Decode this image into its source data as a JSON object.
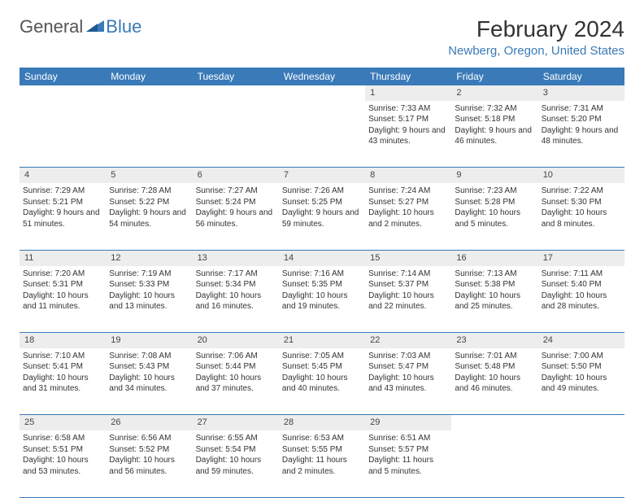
{
  "logo": {
    "text1": "General",
    "text2": "Blue"
  },
  "title": "February 2024",
  "location": "Newberg, Oregon, United States",
  "colors": {
    "header_bg": "#3a7ab8",
    "header_fg": "#ffffff",
    "daynum_bg": "#ededed",
    "border": "#3a7ab8",
    "accent": "#3a7ab8",
    "text": "#333333",
    "page_bg": "#ffffff"
  },
  "typography": {
    "title_fontsize": 28,
    "location_fontsize": 15,
    "dayheader_fontsize": 12,
    "cell_fontsize": 10
  },
  "day_headers": [
    "Sunday",
    "Monday",
    "Tuesday",
    "Wednesday",
    "Thursday",
    "Friday",
    "Saturday"
  ],
  "weeks": [
    [
      null,
      null,
      null,
      null,
      {
        "n": "1",
        "sunrise": "7:33 AM",
        "sunset": "5:17 PM",
        "day_h": 9,
        "day_m": 43
      },
      {
        "n": "2",
        "sunrise": "7:32 AM",
        "sunset": "5:18 PM",
        "day_h": 9,
        "day_m": 46
      },
      {
        "n": "3",
        "sunrise": "7:31 AM",
        "sunset": "5:20 PM",
        "day_h": 9,
        "day_m": 48
      }
    ],
    [
      {
        "n": "4",
        "sunrise": "7:29 AM",
        "sunset": "5:21 PM",
        "day_h": 9,
        "day_m": 51
      },
      {
        "n": "5",
        "sunrise": "7:28 AM",
        "sunset": "5:22 PM",
        "day_h": 9,
        "day_m": 54
      },
      {
        "n": "6",
        "sunrise": "7:27 AM",
        "sunset": "5:24 PM",
        "day_h": 9,
        "day_m": 56
      },
      {
        "n": "7",
        "sunrise": "7:26 AM",
        "sunset": "5:25 PM",
        "day_h": 9,
        "day_m": 59
      },
      {
        "n": "8",
        "sunrise": "7:24 AM",
        "sunset": "5:27 PM",
        "day_h": 10,
        "day_m": 2
      },
      {
        "n": "9",
        "sunrise": "7:23 AM",
        "sunset": "5:28 PM",
        "day_h": 10,
        "day_m": 5
      },
      {
        "n": "10",
        "sunrise": "7:22 AM",
        "sunset": "5:30 PM",
        "day_h": 10,
        "day_m": 8
      }
    ],
    [
      {
        "n": "11",
        "sunrise": "7:20 AM",
        "sunset": "5:31 PM",
        "day_h": 10,
        "day_m": 11
      },
      {
        "n": "12",
        "sunrise": "7:19 AM",
        "sunset": "5:33 PM",
        "day_h": 10,
        "day_m": 13
      },
      {
        "n": "13",
        "sunrise": "7:17 AM",
        "sunset": "5:34 PM",
        "day_h": 10,
        "day_m": 16
      },
      {
        "n": "14",
        "sunrise": "7:16 AM",
        "sunset": "5:35 PM",
        "day_h": 10,
        "day_m": 19
      },
      {
        "n": "15",
        "sunrise": "7:14 AM",
        "sunset": "5:37 PM",
        "day_h": 10,
        "day_m": 22
      },
      {
        "n": "16",
        "sunrise": "7:13 AM",
        "sunset": "5:38 PM",
        "day_h": 10,
        "day_m": 25
      },
      {
        "n": "17",
        "sunrise": "7:11 AM",
        "sunset": "5:40 PM",
        "day_h": 10,
        "day_m": 28
      }
    ],
    [
      {
        "n": "18",
        "sunrise": "7:10 AM",
        "sunset": "5:41 PM",
        "day_h": 10,
        "day_m": 31
      },
      {
        "n": "19",
        "sunrise": "7:08 AM",
        "sunset": "5:43 PM",
        "day_h": 10,
        "day_m": 34
      },
      {
        "n": "20",
        "sunrise": "7:06 AM",
        "sunset": "5:44 PM",
        "day_h": 10,
        "day_m": 37
      },
      {
        "n": "21",
        "sunrise": "7:05 AM",
        "sunset": "5:45 PM",
        "day_h": 10,
        "day_m": 40
      },
      {
        "n": "22",
        "sunrise": "7:03 AM",
        "sunset": "5:47 PM",
        "day_h": 10,
        "day_m": 43
      },
      {
        "n": "23",
        "sunrise": "7:01 AM",
        "sunset": "5:48 PM",
        "day_h": 10,
        "day_m": 46
      },
      {
        "n": "24",
        "sunrise": "7:00 AM",
        "sunset": "5:50 PM",
        "day_h": 10,
        "day_m": 49
      }
    ],
    [
      {
        "n": "25",
        "sunrise": "6:58 AM",
        "sunset": "5:51 PM",
        "day_h": 10,
        "day_m": 53
      },
      {
        "n": "26",
        "sunrise": "6:56 AM",
        "sunset": "5:52 PM",
        "day_h": 10,
        "day_m": 56
      },
      {
        "n": "27",
        "sunrise": "6:55 AM",
        "sunset": "5:54 PM",
        "day_h": 10,
        "day_m": 59
      },
      {
        "n": "28",
        "sunrise": "6:53 AM",
        "sunset": "5:55 PM",
        "day_h": 11,
        "day_m": 2
      },
      {
        "n": "29",
        "sunrise": "6:51 AM",
        "sunset": "5:57 PM",
        "day_h": 11,
        "day_m": 5
      },
      null,
      null
    ]
  ],
  "labels": {
    "sunrise": "Sunrise:",
    "sunset": "Sunset:",
    "daylight": "Daylight:",
    "hours": "hours",
    "and": "and",
    "minutes": "minutes."
  }
}
